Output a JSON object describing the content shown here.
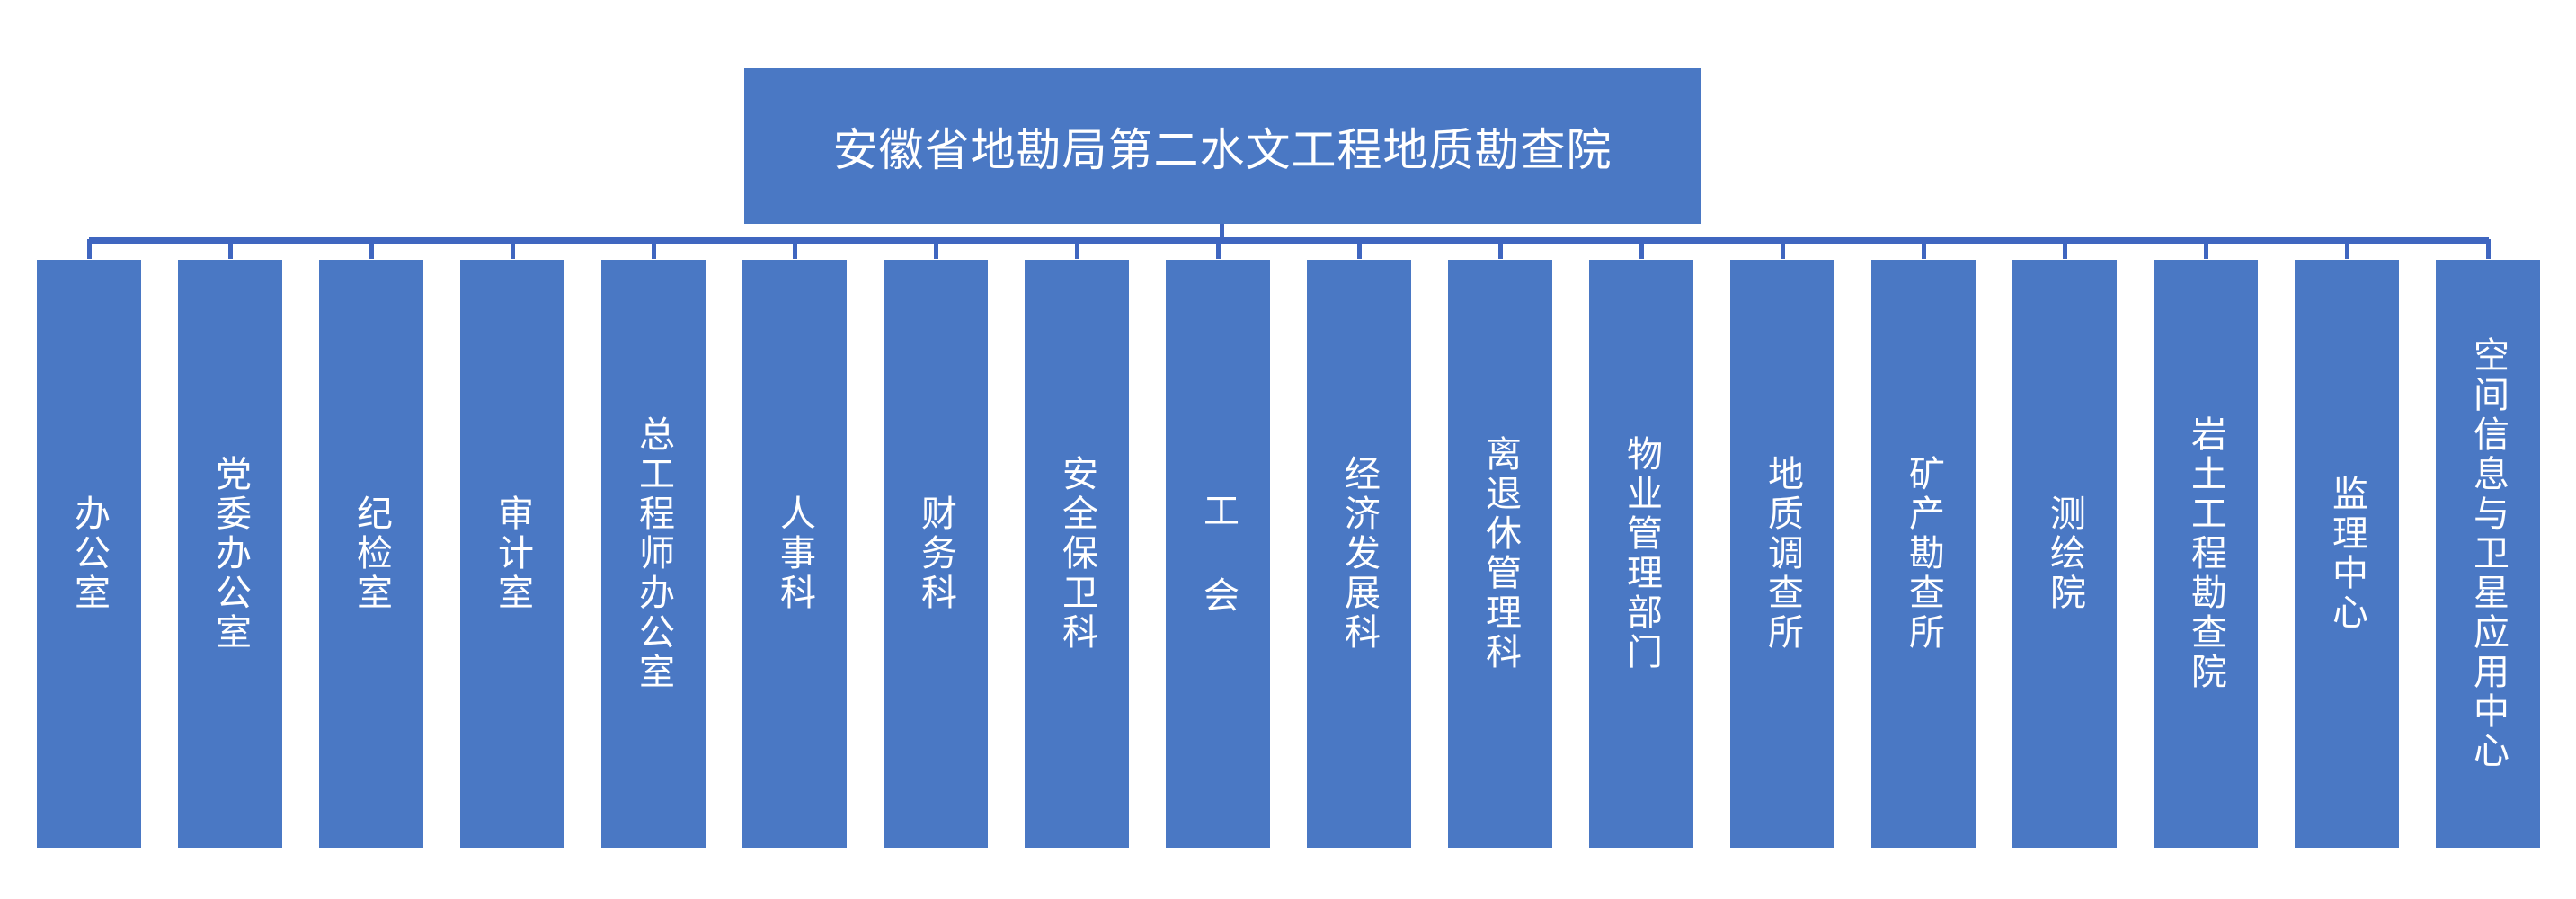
{
  "root": {
    "label": "安徽省地勘局第二水文工程地质勘查院"
  },
  "colors": {
    "box": "#4a78c4",
    "connector": "#3f66c0",
    "text": "#ffffff"
  },
  "departments": [
    {
      "label": "办公室"
    },
    {
      "label": "党委办公室"
    },
    {
      "label": "纪检室"
    },
    {
      "label": "审计室"
    },
    {
      "label": "总工程师办公室"
    },
    {
      "label": "人事科"
    },
    {
      "label": "财务科"
    },
    {
      "label": "安全保卫科"
    },
    {
      "label": "工 会"
    },
    {
      "label": "经济发展科"
    },
    {
      "label": "离退休管理科"
    },
    {
      "label": "物业管理部门"
    },
    {
      "label": "地质调查所"
    },
    {
      "label": "矿产勘查所"
    },
    {
      "label": "测绘院"
    },
    {
      "label": "岩土工程勘查院"
    },
    {
      "label": "监理中心"
    },
    {
      "label": "空间信息与卫星应用中心"
    }
  ]
}
